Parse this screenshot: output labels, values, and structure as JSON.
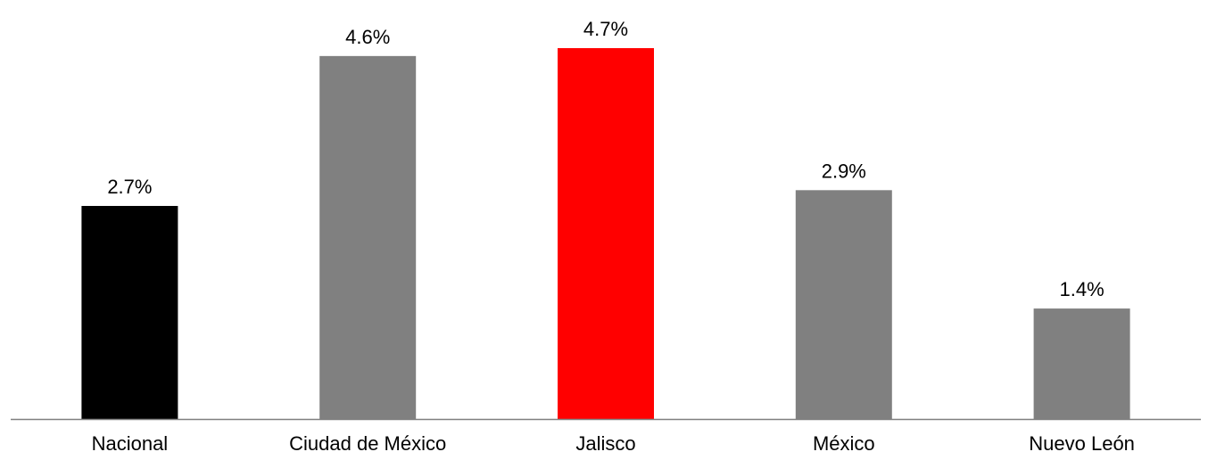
{
  "chart_data": {
    "type": "bar",
    "categories": [
      "Nacional",
      "Ciudad de México",
      "Jalisco",
      "México",
      "Nuevo León"
    ],
    "values": [
      2.7,
      4.6,
      4.7,
      2.9,
      1.4
    ],
    "value_labels": [
      "2.7%",
      "4.6%",
      "4.7%",
      "2.9%",
      "1.4%"
    ],
    "bar_colors": [
      "#000000",
      "#808080",
      "#ff0000",
      "#808080",
      "#808080"
    ],
    "title": "",
    "xlabel": "",
    "ylabel": "",
    "ylim": [
      0,
      4.7
    ],
    "grid": false,
    "legend": "none",
    "axis_color": "#7f7f7f"
  }
}
